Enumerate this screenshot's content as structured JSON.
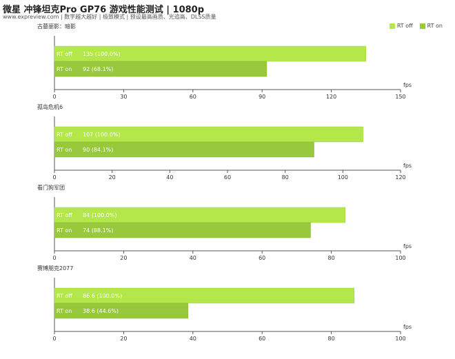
{
  "header": {
    "title": "微星 冲锋坦克Pro GP76 游戏性能测试 | 1080p",
    "subtitle": "www.expreview.com | 数字越大越好 | 极致模式 | 预设最高画质、光追高、DLSS质量"
  },
  "legend": {
    "items": [
      {
        "label": "RT off",
        "color": "#b4e84a"
      },
      {
        "label": "RT on",
        "color": "#98c93d"
      }
    ]
  },
  "chart_data": [
    {
      "type": "bar",
      "title": "古墓丽影：暗影",
      "xlabel": "fps",
      "xlim": [
        0,
        150
      ],
      "ticks": [
        0,
        30,
        60,
        90,
        120,
        150
      ],
      "categories": [
        "RT off",
        "RT on"
      ],
      "values": [
        135,
        92
      ],
      "labels": [
        "135 (100.0%)",
        "92 (68.1%)"
      ]
    },
    {
      "type": "bar",
      "title": "孤岛危机6",
      "xlabel": "fps",
      "xlim": [
        0,
        120
      ],
      "ticks": [
        0,
        20,
        40,
        60,
        80,
        100,
        120
      ],
      "categories": [
        "RT off",
        "RT on"
      ],
      "values": [
        107,
        90
      ],
      "labels": [
        "107 (100.0%)",
        "90 (84.1%)"
      ]
    },
    {
      "type": "bar",
      "title": "看门狗军团",
      "xlabel": "fps",
      "xlim": [
        0,
        100
      ],
      "ticks": [
        0,
        20,
        40,
        60,
        80,
        100
      ],
      "categories": [
        "RT off",
        "RT on"
      ],
      "values": [
        84,
        74
      ],
      "labels": [
        "84 (100.0%)",
        "74 (88.1%)"
      ]
    },
    {
      "type": "bar",
      "title": "赛博朋克2077",
      "xlabel": "fps",
      "xlim": [
        0,
        100
      ],
      "ticks": [
        0,
        20,
        40,
        60,
        80,
        100
      ],
      "categories": [
        "RT off",
        "RT on"
      ],
      "values": [
        86.6,
        38.6
      ],
      "labels": [
        "86.6 (100.0%)",
        "38.6 (44.6%)"
      ]
    }
  ]
}
